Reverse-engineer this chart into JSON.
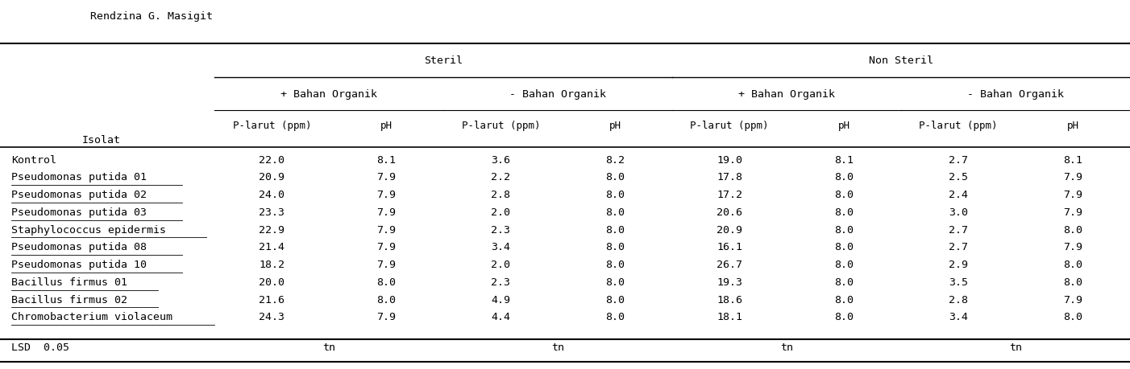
{
  "title_top": "Rendzina G. Masigit",
  "header1_steril": "Steril",
  "header1_nonsteril": "Non Steril",
  "header2": [
    "+ Bahan Organik",
    "- Bahan Organik",
    "+ Bahan Organik",
    "- Bahan Organik"
  ],
  "col_labels": [
    "P-larut (ppm)",
    "pH",
    "P-larut (ppm)",
    "pH",
    "P-larut (ppm)",
    "pH",
    "P-larut (ppm)",
    "pH"
  ],
  "row_label": "Isolat",
  "isolat_col": [
    "Kontrol",
    "Pseudomonas putida 01",
    "Pseudomonas putida 02",
    "Pseudomonas putida 03",
    "Staphylococcus epidermis",
    "Pseudomonas putida 08",
    "Pseudomonas putida 10",
    "Bacillus firmus 01",
    "Bacillus firmus 02",
    "Chromobacterium violaceum"
  ],
  "isolat_underline": [
    false,
    true,
    true,
    true,
    true,
    true,
    true,
    true,
    true,
    true
  ],
  "data": [
    [
      22.0,
      8.1,
      3.6,
      8.2,
      19.0,
      8.1,
      2.7,
      8.1
    ],
    [
      20.9,
      7.9,
      2.2,
      8.0,
      17.8,
      8.0,
      2.5,
      7.9
    ],
    [
      24.0,
      7.9,
      2.8,
      8.0,
      17.2,
      8.0,
      2.4,
      7.9
    ],
    [
      23.3,
      7.9,
      2.0,
      8.0,
      20.6,
      8.0,
      3.0,
      7.9
    ],
    [
      22.9,
      7.9,
      2.3,
      8.0,
      20.9,
      8.0,
      2.7,
      8.0
    ],
    [
      21.4,
      7.9,
      3.4,
      8.0,
      16.1,
      8.0,
      2.7,
      7.9
    ],
    [
      18.2,
      7.9,
      2.0,
      8.0,
      26.7,
      8.0,
      2.9,
      8.0
    ],
    [
      20.0,
      8.0,
      2.3,
      8.0,
      19.3,
      8.0,
      3.5,
      8.0
    ],
    [
      21.6,
      8.0,
      4.9,
      8.0,
      18.6,
      8.0,
      2.8,
      7.9
    ],
    [
      24.3,
      7.9,
      4.4,
      8.0,
      18.1,
      8.0,
      3.4,
      8.0
    ]
  ],
  "lsd_label": "LSD  0.05",
  "lsd_values": [
    "tn",
    "tn",
    "tn",
    "tn"
  ],
  "bg_color": "#ffffff",
  "text_color": "#000000",
  "font_family": "monospace",
  "font_size": 9.5
}
